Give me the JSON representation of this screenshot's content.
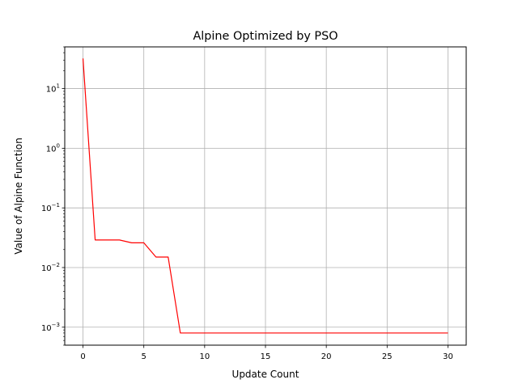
{
  "chart_data": {
    "type": "line",
    "title": "Alpine Optimized by PSO",
    "xlabel": "Update Count",
    "ylabel": "Value of Alpine Function",
    "xlim": [
      -1.5,
      31.5
    ],
    "ylim": [
      0.0005,
      50
    ],
    "yscale": "log",
    "grid": true,
    "x_ticks": [
      0,
      5,
      10,
      15,
      20,
      25,
      30
    ],
    "x_tick_labels": [
      "0",
      "5",
      "10",
      "15",
      "20",
      "25",
      "30"
    ],
    "y_ticks": [
      {
        "value": 10,
        "base": "10",
        "exp": "1"
      },
      {
        "value": 1,
        "base": "10",
        "exp": "0"
      },
      {
        "value": 0.1,
        "base": "10",
        "exp": "−1"
      },
      {
        "value": 0.01,
        "base": "10",
        "exp": "−2"
      },
      {
        "value": 0.001,
        "base": "10",
        "exp": "−3"
      }
    ],
    "series": [
      {
        "color": "#ff0000",
        "x": [
          0,
          1,
          2,
          3,
          4,
          5,
          6,
          7,
          8,
          9,
          10,
          11,
          12,
          13,
          14,
          15,
          16,
          17,
          18,
          19,
          20,
          21,
          22,
          23,
          24,
          25,
          26,
          27,
          28,
          29,
          30
        ],
        "y": [
          32,
          0.029,
          0.029,
          0.029,
          0.026,
          0.026,
          0.015,
          0.015,
          0.0008,
          0.0008,
          0.0008,
          0.0008,
          0.0008,
          0.0008,
          0.0008,
          0.0008,
          0.0008,
          0.0008,
          0.0008,
          0.0008,
          0.0008,
          0.0008,
          0.0008,
          0.0008,
          0.0008,
          0.0008,
          0.0008,
          0.0008,
          0.0008,
          0.0008,
          0.0008
        ]
      }
    ]
  }
}
